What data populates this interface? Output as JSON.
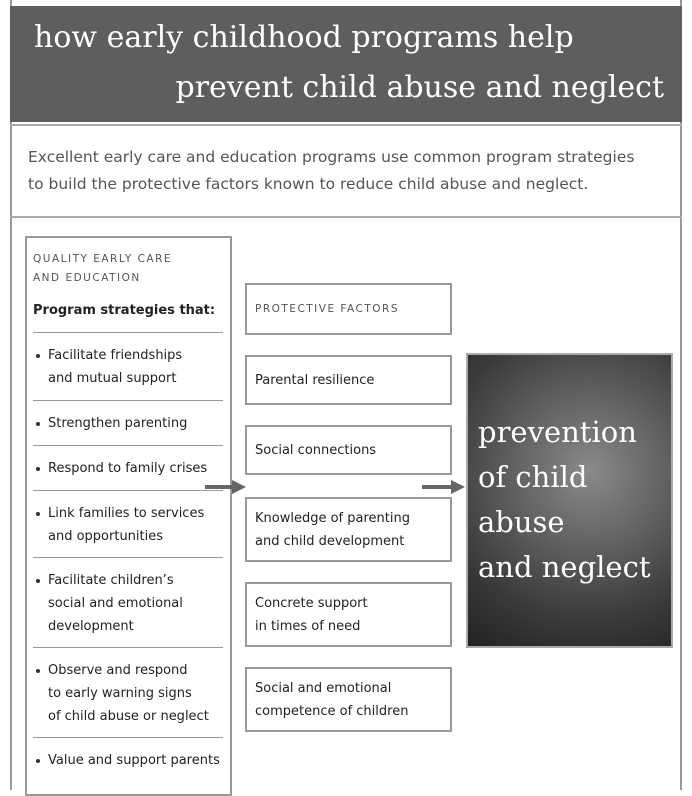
{
  "header": {
    "title": [
      "how early childhood programs help",
      "prevent child abuse and neglect"
    ]
  },
  "intro": [
    "Excellent early care and education programs use common program strategies",
    "to build the protective factors known to reduce child abuse and neglect."
  ],
  "strategies": {
    "label": [
      "QUALITY EARLY CARE",
      "AND EDUCATION"
    ],
    "heading": "Program strategies that:",
    "items": [
      [
        "Facilitate friendships",
        "and mutual support"
      ],
      [
        "Strengthen parenting"
      ],
      [
        "Respond to family crises"
      ],
      [
        "Link families to services",
        "and opportunities"
      ],
      [
        "Facilitate children’s",
        "social and emotional",
        "development"
      ],
      [
        "Observe and respond",
        "to early warning signs",
        "of child abuse or neglect"
      ],
      [
        "Value and support parents"
      ]
    ]
  },
  "factors": {
    "label": "PROTECTIVE FACTORS",
    "items": [
      [
        "Parental resilience"
      ],
      [
        "Social connections"
      ],
      [
        "Knowledge of parenting",
        "and child development"
      ],
      [
        "Concrete support",
        "in times of need"
      ],
      [
        "Social and emotional",
        "competence of children"
      ]
    ]
  },
  "outcome": [
    "prevention",
    "of child",
    "abuse",
    "and neglect"
  ]
}
